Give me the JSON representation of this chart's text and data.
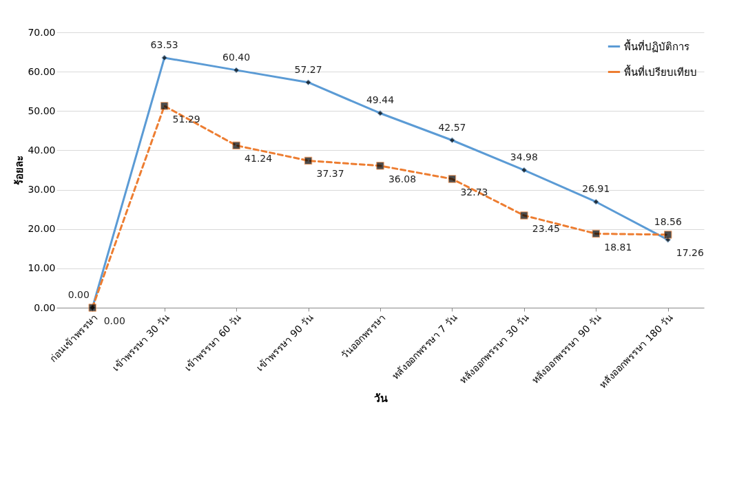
{
  "chart_data": {
    "type": "line",
    "xlabel": "วัน",
    "ylabel": "ร้อยละ",
    "categories": [
      "ก่อนเข้าพรรษา",
      "เข้าพรรษา 30 วัน",
      "เข้าพรรษา 60 วัน",
      "เข้าพรรษา 90 วัน",
      "วันออกพรรษา",
      "หลังออกพรรษา 7 วัน",
      "หลังออกพรรษา 30 วัน",
      "หลังออกพรรษา 90 วัน",
      "หลังออกพรรษา 180 วัน"
    ],
    "series": [
      {
        "name": "พื้นที่ปฏิบัติการ",
        "color": "#5b9bd5",
        "marker": "diamond",
        "line_style": "solid",
        "values": [
          0,
          63.53,
          60.4,
          57.27,
          49.44,
          42.57,
          34.98,
          26.91,
          17.26
        ],
        "value_labels": [
          "0.00",
          "63.53",
          "60.40",
          "57.27",
          "49.44",
          "42.57",
          "34.98",
          "26.91",
          "17.26"
        ]
      },
      {
        "name": "พื้นที่เปรียบเทียบ",
        "color": "#ed7d31",
        "marker": "square",
        "line_style": "dashed",
        "values": [
          0,
          51.29,
          41.24,
          37.37,
          36.08,
          32.73,
          23.45,
          18.81,
          18.56
        ],
        "value_labels": [
          "0.00",
          "51.29",
          "41.24",
          "37.37",
          "36.08",
          "32.73",
          "23.45",
          "18.81",
          "18.56"
        ]
      }
    ],
    "ylim": [
      0,
      70
    ],
    "yticks": [
      {
        "value": 0,
        "label": "0.00"
      },
      {
        "value": 10,
        "label": "10.00"
      },
      {
        "value": 20,
        "label": "20.00"
      },
      {
        "value": 30,
        "label": "30.00"
      },
      {
        "value": 40,
        "label": "40.00"
      },
      {
        "value": 50,
        "label": "50.00"
      },
      {
        "value": 60,
        "label": "60.00"
      },
      {
        "value": 70,
        "label": "70.00"
      }
    ],
    "grid": "y",
    "legend": "top right"
  }
}
